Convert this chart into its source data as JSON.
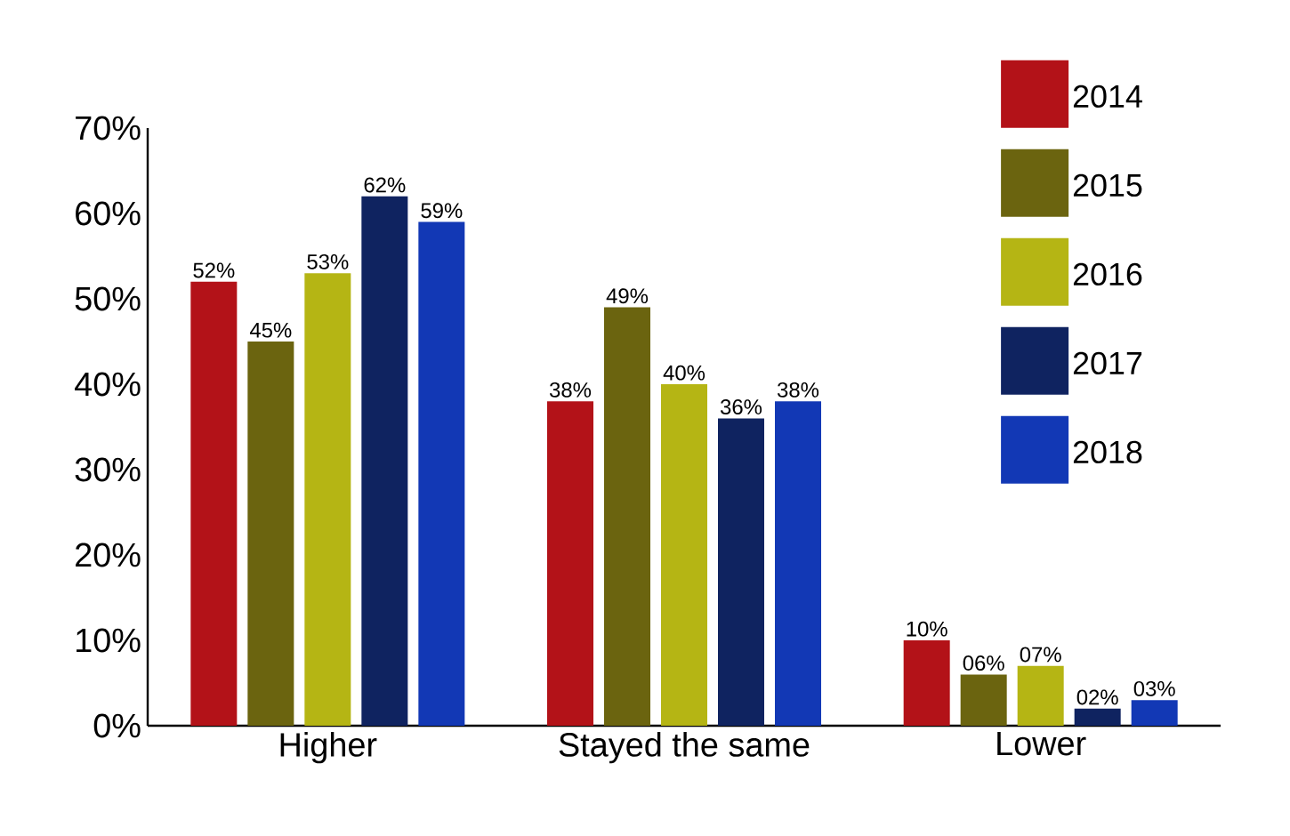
{
  "chart_data": {
    "type": "bar",
    "categories": [
      "Higher",
      "Stayed the same",
      "Lower"
    ],
    "series": [
      {
        "name": "2014",
        "color": "#b31218",
        "values": [
          52,
          38,
          10
        ],
        "value_labels": [
          "52%",
          "38%",
          "10%"
        ]
      },
      {
        "name": "2015",
        "color": "#6b640f",
        "values": [
          45,
          49,
          6
        ],
        "value_labels": [
          "45%",
          "49%",
          "06%"
        ]
      },
      {
        "name": "2016",
        "color": "#b5b514",
        "values": [
          53,
          40,
          7
        ],
        "value_labels": [
          "53%",
          "40%",
          "07%"
        ]
      },
      {
        "name": "2017",
        "color": "#0f2360",
        "values": [
          62,
          36,
          2
        ],
        "value_labels": [
          "62%",
          "36%",
          "02%"
        ]
      },
      {
        "name": "2018",
        "color": "#1238b5",
        "values": [
          59,
          38,
          3
        ],
        "value_labels": [
          "59%",
          "38%",
          "03%"
        ]
      }
    ],
    "ylim": [
      0,
      70
    ],
    "yticks": [
      {
        "value": 0,
        "label": "0%"
      },
      {
        "value": 10,
        "label": "10%"
      },
      {
        "value": 20,
        "label": "20%"
      },
      {
        "value": 30,
        "label": "30%"
      },
      {
        "value": 40,
        "label": "40%"
      },
      {
        "value": 50,
        "label": "50%"
      },
      {
        "value": 60,
        "label": "60%"
      },
      {
        "value": 70,
        "label": "70%"
      }
    ],
    "grid": false,
    "legend": "top right"
  }
}
